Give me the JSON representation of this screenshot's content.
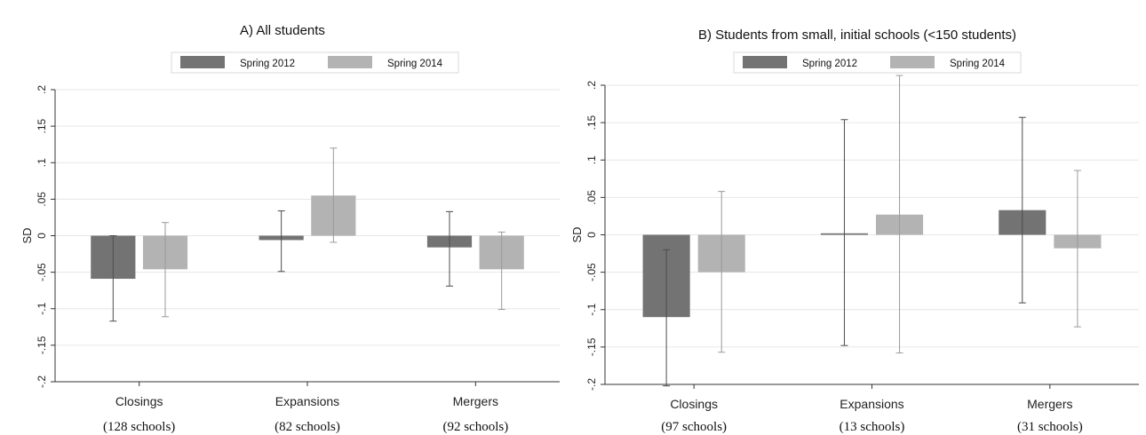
{
  "chart_data": [
    {
      "type": "bar",
      "title": "A) All students",
      "xlabel": "",
      "ylabel": "SD",
      "ylim": [
        -0.2,
        0.2
      ],
      "yticks": [
        -0.2,
        -0.15,
        -0.1,
        -0.05,
        0,
        0.05,
        0.1,
        0.15,
        0.2
      ],
      "ytick_labels": [
        "-.2",
        "-.15",
        "-.1",
        "-.05",
        "0",
        ".05",
        ".1",
        ".15",
        ".2"
      ],
      "grid": true,
      "legend_position": "top",
      "categories": [
        "Closings",
        "Expansions",
        "Mergers"
      ],
      "category_notes": [
        "(128 schools)",
        "(82 schools)",
        "(92 schools)"
      ],
      "series": [
        {
          "name": "Spring 2012",
          "color": "#737373",
          "values": [
            -0.059,
            -0.006,
            -0.016
          ],
          "ci_low": [
            -0.117,
            -0.049,
            -0.069
          ],
          "ci_high": [
            0.0,
            0.034,
            0.033
          ]
        },
        {
          "name": "Spring 2014",
          "color": "#b3b3b3",
          "values": [
            -0.046,
            0.055,
            -0.046
          ],
          "ci_low": [
            -0.111,
            -0.009,
            -0.101
          ],
          "ci_high": [
            0.018,
            0.12,
            0.005
          ]
        }
      ]
    },
    {
      "type": "bar",
      "title": "B) Students from small, initial schools (<150 students)",
      "xlabel": "",
      "ylabel": "SD",
      "ylim": [
        -0.2,
        0.2
      ],
      "yticks": [
        -0.2,
        -0.15,
        -0.1,
        -0.05,
        0,
        0.05,
        0.1,
        0.15,
        0.2
      ],
      "ytick_labels": [
        "-.2",
        "-.15",
        "-.1",
        "-.05",
        "0",
        ".05",
        ".1",
        ".15",
        ".2"
      ],
      "grid": true,
      "legend_position": "top",
      "categories": [
        "Closings",
        "Expansions",
        "Mergers"
      ],
      "category_notes": [
        "(97 schools)",
        "(13 schools)",
        "(31 schools)"
      ],
      "series": [
        {
          "name": "Spring 2012",
          "color": "#737373",
          "values": [
            -0.11,
            0.002,
            0.033
          ],
          "ci_low": [
            -0.202,
            -0.148,
            -0.091
          ],
          "ci_high": [
            -0.02,
            0.154,
            0.157
          ]
        },
        {
          "name": "Spring 2014",
          "color": "#b3b3b3",
          "values": [
            -0.05,
            0.027,
            -0.018
          ],
          "ci_low": [
            -0.157,
            -0.158,
            -0.123
          ],
          "ci_high": [
            0.058,
            0.213,
            0.086
          ]
        }
      ]
    }
  ]
}
